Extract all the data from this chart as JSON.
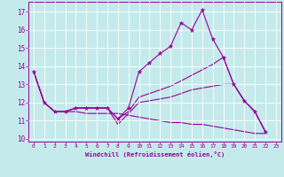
{
  "bg_color": "#c5eaeb",
  "line_color": "#990099",
  "xlim": [
    -0.5,
    23.5
  ],
  "ylim": [
    9.85,
    17.55
  ],
  "yticks": [
    10,
    11,
    12,
    13,
    14,
    15,
    16,
    17
  ],
  "xticks": [
    0,
    1,
    2,
    3,
    4,
    5,
    6,
    7,
    8,
    9,
    10,
    11,
    12,
    13,
    14,
    15,
    16,
    17,
    18,
    19,
    20,
    21,
    22,
    23
  ],
  "xlabel": "Windchill (Refroidissement éolien,°C)",
  "lines": [
    {
      "x": [
        0,
        1,
        2,
        3,
        4,
        5,
        6,
        7,
        8,
        9,
        10,
        11,
        12,
        13,
        14,
        15,
        16,
        17,
        18,
        19,
        20,
        21,
        22
      ],
      "y": [
        13.7,
        12.0,
        11.5,
        11.5,
        11.7,
        11.7,
        11.7,
        11.7,
        11.1,
        11.7,
        13.7,
        14.2,
        14.7,
        15.1,
        16.4,
        16.0,
        17.1,
        15.5,
        14.5,
        13.0,
        12.1,
        11.5,
        10.4
      ],
      "markers": true
    },
    {
      "x": [
        0,
        1,
        2,
        3,
        4,
        5,
        6,
        7,
        8,
        9,
        10,
        11,
        12,
        13,
        14,
        15,
        16,
        17,
        18,
        19,
        20,
        21,
        22
      ],
      "y": [
        13.7,
        12.0,
        11.5,
        11.5,
        11.7,
        11.7,
        11.7,
        11.7,
        11.1,
        11.5,
        12.3,
        12.5,
        12.7,
        12.9,
        13.2,
        13.5,
        13.8,
        14.1,
        14.5,
        13.0,
        12.1,
        11.5,
        10.4
      ],
      "markers": false
    },
    {
      "x": [
        0,
        1,
        2,
        3,
        4,
        5,
        6,
        7,
        8,
        9,
        10,
        11,
        12,
        13,
        14,
        15,
        16,
        17,
        18,
        19,
        20,
        21,
        22
      ],
      "y": [
        13.7,
        12.0,
        11.5,
        11.5,
        11.7,
        11.7,
        11.7,
        11.7,
        10.8,
        11.4,
        12.0,
        12.1,
        12.2,
        12.3,
        12.5,
        12.7,
        12.8,
        12.9,
        13.0,
        13.0,
        12.1,
        11.5,
        10.4
      ],
      "markers": false
    },
    {
      "x": [
        0,
        1,
        2,
        3,
        4,
        5,
        6,
        7,
        8,
        9,
        10,
        11,
        12,
        13,
        14,
        15,
        16,
        17,
        18,
        19,
        20,
        21,
        22
      ],
      "y": [
        13.7,
        12.0,
        11.5,
        11.5,
        11.5,
        11.4,
        11.4,
        11.4,
        11.4,
        11.3,
        11.2,
        11.1,
        11.0,
        10.9,
        10.9,
        10.8,
        10.8,
        10.7,
        10.6,
        10.5,
        10.4,
        10.3,
        10.3
      ],
      "markers": false
    }
  ]
}
